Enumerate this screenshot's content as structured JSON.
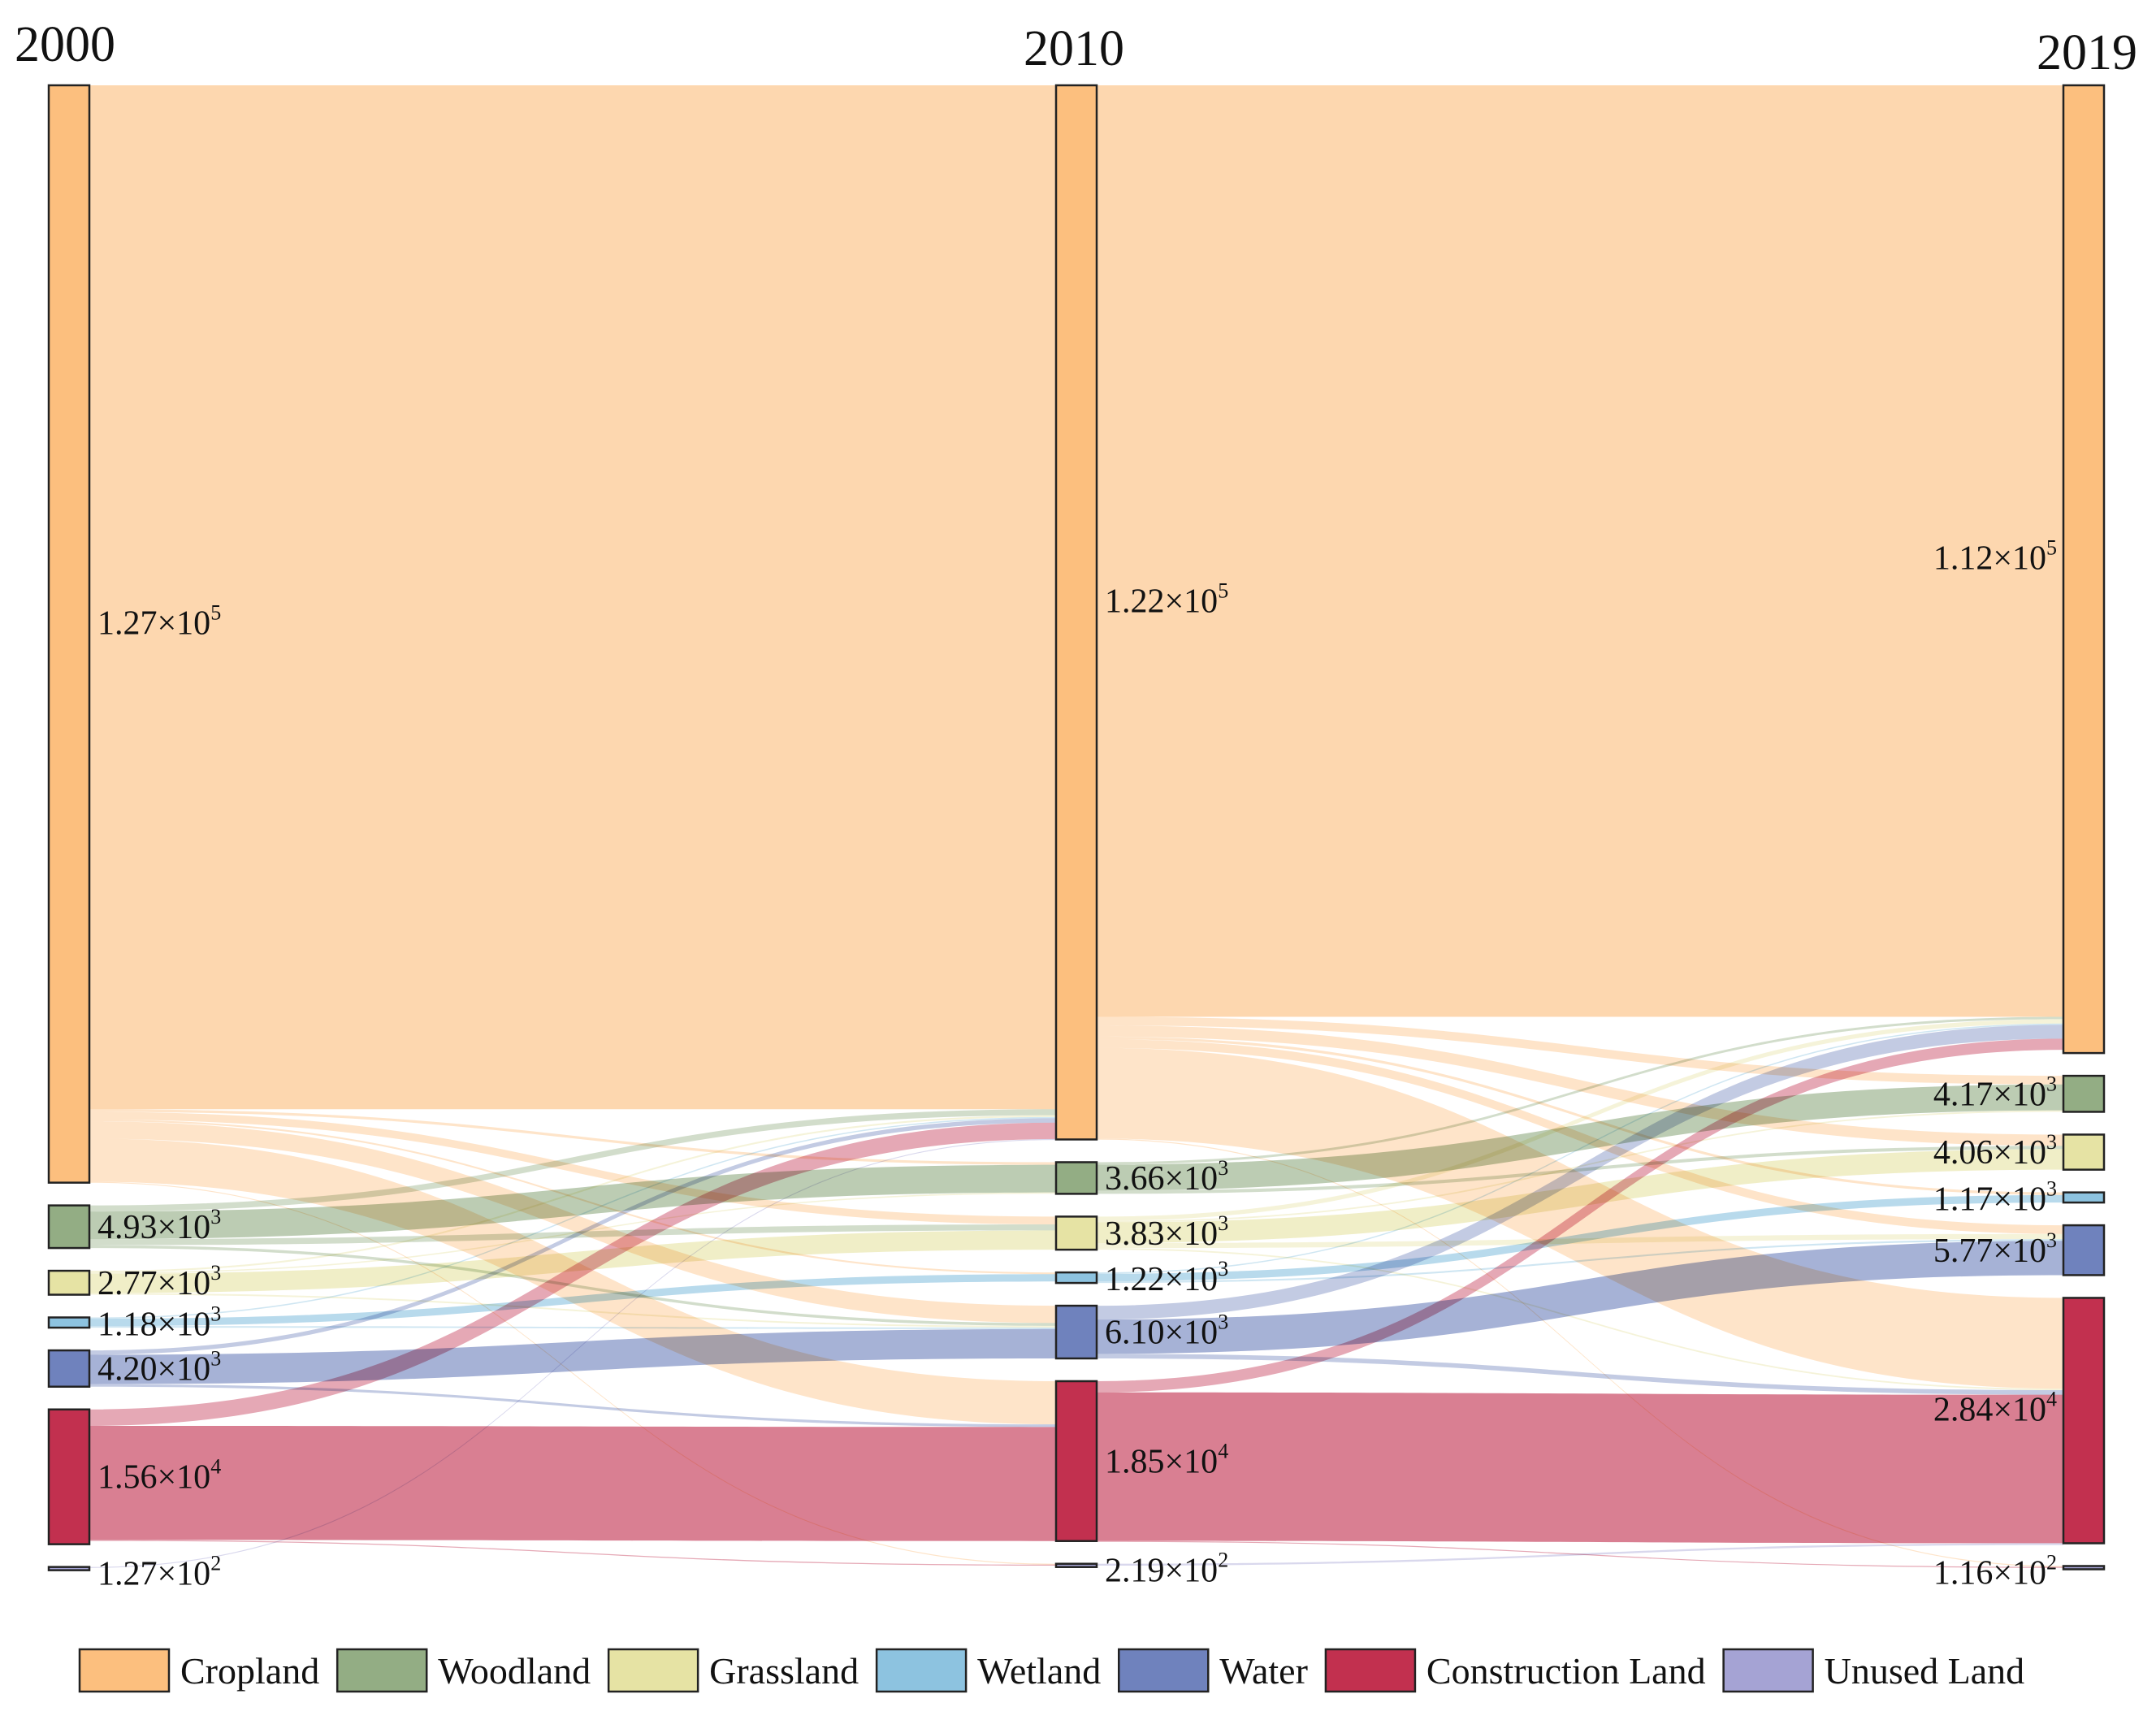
{
  "colors": {
    "Cropland": "#fcbf7e",
    "Woodland": "#93ad84",
    "Grassland": "#e6e3a4",
    "Wetland": "#8dc3e0",
    "Water": "#6f82bd",
    "Construction Land": "#c2304f",
    "Unused Land": "#a5a3d4"
  },
  "chart_data": {
    "type": "sankey",
    "title": "",
    "years": [
      "2000",
      "2010",
      "2019"
    ],
    "categories": [
      "Cropland",
      "Woodland",
      "Grassland",
      "Wetland",
      "Water",
      "Construction Land",
      "Unused Land"
    ],
    "nodes": [
      {
        "year": "2000",
        "category": "Cropland",
        "value": 127000,
        "mantissa": "1.27",
        "exponent": "5"
      },
      {
        "year": "2000",
        "category": "Woodland",
        "value": 4930,
        "mantissa": "4.93",
        "exponent": "3"
      },
      {
        "year": "2000",
        "category": "Grassland",
        "value": 2770,
        "mantissa": "2.77",
        "exponent": "3"
      },
      {
        "year": "2000",
        "category": "Wetland",
        "value": 1180,
        "mantissa": "1.18",
        "exponent": "3"
      },
      {
        "year": "2000",
        "category": "Water",
        "value": 4200,
        "mantissa": "4.20",
        "exponent": "3"
      },
      {
        "year": "2000",
        "category": "Construction Land",
        "value": 15600,
        "mantissa": "1.56",
        "exponent": "4"
      },
      {
        "year": "2000",
        "category": "Unused Land",
        "value": 127,
        "mantissa": "1.27",
        "exponent": "2"
      },
      {
        "year": "2010",
        "category": "Cropland",
        "value": 122000,
        "mantissa": "1.22",
        "exponent": "5"
      },
      {
        "year": "2010",
        "category": "Woodland",
        "value": 3660,
        "mantissa": "3.66",
        "exponent": "3"
      },
      {
        "year": "2010",
        "category": "Grassland",
        "value": 3830,
        "mantissa": "3.83",
        "exponent": "3"
      },
      {
        "year": "2010",
        "category": "Wetland",
        "value": 1220,
        "mantissa": "1.22",
        "exponent": "3"
      },
      {
        "year": "2010",
        "category": "Water",
        "value": 6100,
        "mantissa": "6.10",
        "exponent": "3"
      },
      {
        "year": "2010",
        "category": "Construction Land",
        "value": 18500,
        "mantissa": "1.85",
        "exponent": "4"
      },
      {
        "year": "2010",
        "category": "Unused Land",
        "value": 219,
        "mantissa": "2.19",
        "exponent": "2"
      },
      {
        "year": "2019",
        "category": "Cropland",
        "value": 112000,
        "mantissa": "1.12",
        "exponent": "5"
      },
      {
        "year": "2019",
        "category": "Woodland",
        "value": 4170,
        "mantissa": "4.17",
        "exponent": "3"
      },
      {
        "year": "2019",
        "category": "Grassland",
        "value": 4060,
        "mantissa": "4.06",
        "exponent": "3"
      },
      {
        "year": "2019",
        "category": "Wetland",
        "value": 1170,
        "mantissa": "1.17",
        "exponent": "3"
      },
      {
        "year": "2019",
        "category": "Water",
        "value": 5770,
        "mantissa": "5.77",
        "exponent": "3"
      },
      {
        "year": "2019",
        "category": "Construction Land",
        "value": 28400,
        "mantissa": "2.84",
        "exponent": "4"
      },
      {
        "year": "2019",
        "category": "Unused Land",
        "value": 116,
        "mantissa": "1.16",
        "exponent": "2"
      }
    ],
    "links": [
      {
        "from": [
          "2000",
          "Cropland"
        ],
        "to": [
          "2010",
          "Cropland"
        ],
        "value": 118500
      },
      {
        "from": [
          "2000",
          "Cropland"
        ],
        "to": [
          "2010",
          "Woodland"
        ],
        "value": 300
      },
      {
        "from": [
          "2000",
          "Cropland"
        ],
        "to": [
          "2010",
          "Grassland"
        ],
        "value": 900
      },
      {
        "from": [
          "2000",
          "Cropland"
        ],
        "to": [
          "2010",
          "Wetland"
        ],
        "value": 200
      },
      {
        "from": [
          "2000",
          "Cropland"
        ],
        "to": [
          "2010",
          "Water"
        ],
        "value": 2000
      },
      {
        "from": [
          "2000",
          "Cropland"
        ],
        "to": [
          "2010",
          "Construction Land"
        ],
        "value": 5000
      },
      {
        "from": [
          "2000",
          "Cropland"
        ],
        "to": [
          "2010",
          "Unused Land"
        ],
        "value": 100
      },
      {
        "from": [
          "2000",
          "Woodland"
        ],
        "to": [
          "2010",
          "Cropland"
        ],
        "value": 700
      },
      {
        "from": [
          "2000",
          "Woodland"
        ],
        "to": [
          "2010",
          "Woodland"
        ],
        "value": 3200
      },
      {
        "from": [
          "2000",
          "Woodland"
        ],
        "to": [
          "2010",
          "Grassland"
        ],
        "value": 700
      },
      {
        "from": [
          "2000",
          "Woodland"
        ],
        "to": [
          "2010",
          "Water"
        ],
        "value": 330
      },
      {
        "from": [
          "2000",
          "Grassland"
        ],
        "to": [
          "2010",
          "Cropland"
        ],
        "value": 200
      },
      {
        "from": [
          "2000",
          "Grassland"
        ],
        "to": [
          "2010",
          "Woodland"
        ],
        "value": 150
      },
      {
        "from": [
          "2000",
          "Grassland"
        ],
        "to": [
          "2010",
          "Grassland"
        ],
        "value": 2230
      },
      {
        "from": [
          "2000",
          "Grassland"
        ],
        "to": [
          "2010",
          "Water"
        ],
        "value": 190
      },
      {
        "from": [
          "2000",
          "Wetland"
        ],
        "to": [
          "2010",
          "Cropland"
        ],
        "value": 150
      },
      {
        "from": [
          "2000",
          "Wetland"
        ],
        "to": [
          "2010",
          "Wetland"
        ],
        "value": 850
      },
      {
        "from": [
          "2000",
          "Wetland"
        ],
        "to": [
          "2010",
          "Water"
        ],
        "value": 180
      },
      {
        "from": [
          "2000",
          "Water"
        ],
        "to": [
          "2010",
          "Cropland"
        ],
        "value": 500
      },
      {
        "from": [
          "2000",
          "Water"
        ],
        "to": [
          "2010",
          "Water"
        ],
        "value": 3400
      },
      {
        "from": [
          "2000",
          "Water"
        ],
        "to": [
          "2010",
          "Construction Land"
        ],
        "value": 300
      },
      {
        "from": [
          "2000",
          "Construction Land"
        ],
        "to": [
          "2010",
          "Cropland"
        ],
        "value": 1900
      },
      {
        "from": [
          "2000",
          "Construction Land"
        ],
        "to": [
          "2010",
          "Construction Land"
        ],
        "value": 13200
      },
      {
        "from": [
          "2000",
          "Construction Land"
        ],
        "to": [
          "2010",
          "Unused Land"
        ],
        "value": 119
      },
      {
        "from": [
          "2000",
          "Unused Land"
        ],
        "to": [
          "2010",
          "Cropland"
        ],
        "value": 27
      },
      {
        "from": [
          "2010",
          "Cropland"
        ],
        "to": [
          "2019",
          "Cropland"
        ],
        "value": 107800
      },
      {
        "from": [
          "2010",
          "Cropland"
        ],
        "to": [
          "2019",
          "Woodland"
        ],
        "value": 1000
      },
      {
        "from": [
          "2010",
          "Cropland"
        ],
        "to": [
          "2019",
          "Grassland"
        ],
        "value": 1300
      },
      {
        "from": [
          "2010",
          "Cropland"
        ],
        "to": [
          "2019",
          "Wetland"
        ],
        "value": 300
      },
      {
        "from": [
          "2010",
          "Cropland"
        ],
        "to": [
          "2019",
          "Water"
        ],
        "value": 1000
      },
      {
        "from": [
          "2010",
          "Cropland"
        ],
        "to": [
          "2019",
          "Construction Land"
        ],
        "value": 10500
      },
      {
        "from": [
          "2010",
          "Cropland"
        ],
        "to": [
          "2019",
          "Unused Land"
        ],
        "value": 100
      },
      {
        "from": [
          "2010",
          "Woodland"
        ],
        "to": [
          "2019",
          "Cropland"
        ],
        "value": 280
      },
      {
        "from": [
          "2010",
          "Woodland"
        ],
        "to": [
          "2019",
          "Woodland"
        ],
        "value": 3000
      },
      {
        "from": [
          "2010",
          "Woodland"
        ],
        "to": [
          "2019",
          "Grassland"
        ],
        "value": 380
      },
      {
        "from": [
          "2010",
          "Grassland"
        ],
        "to": [
          "2019",
          "Cropland"
        ],
        "value": 500
      },
      {
        "from": [
          "2010",
          "Grassland"
        ],
        "to": [
          "2019",
          "Woodland"
        ],
        "value": 170
      },
      {
        "from": [
          "2010",
          "Grassland"
        ],
        "to": [
          "2019",
          "Grassland"
        ],
        "value": 2380
      },
      {
        "from": [
          "2010",
          "Grassland"
        ],
        "to": [
          "2019",
          "Water"
        ],
        "value": 600
      },
      {
        "from": [
          "2010",
          "Grassland"
        ],
        "to": [
          "2019",
          "Construction Land"
        ],
        "value": 180
      },
      {
        "from": [
          "2010",
          "Wetland"
        ],
        "to": [
          "2019",
          "Cropland"
        ],
        "value": 150
      },
      {
        "from": [
          "2010",
          "Wetland"
        ],
        "to": [
          "2019",
          "Wetland"
        ],
        "value": 870
      },
      {
        "from": [
          "2010",
          "Wetland"
        ],
        "to": [
          "2019",
          "Water"
        ],
        "value": 200
      },
      {
        "from": [
          "2010",
          "Water"
        ],
        "to": [
          "2019",
          "Cropland"
        ],
        "value": 1600
      },
      {
        "from": [
          "2010",
          "Water"
        ],
        "to": [
          "2019",
          "Water"
        ],
        "value": 3970
      },
      {
        "from": [
          "2010",
          "Water"
        ],
        "to": [
          "2019",
          "Construction Land"
        ],
        "value": 530
      },
      {
        "from": [
          "2010",
          "Construction Land"
        ],
        "to": [
          "2019",
          "Cropland"
        ],
        "value": 1300
      },
      {
        "from": [
          "2010",
          "Construction Land"
        ],
        "to": [
          "2019",
          "Construction Land"
        ],
        "value": 17184
      },
      {
        "from": [
          "2010",
          "Construction Land"
        ],
        "to": [
          "2019",
          "Unused Land"
        ],
        "value": 16
      },
      {
        "from": [
          "2010",
          "Unused Land"
        ],
        "to": [
          "2019",
          "Construction Land"
        ],
        "value": 219
      }
    ]
  }
}
